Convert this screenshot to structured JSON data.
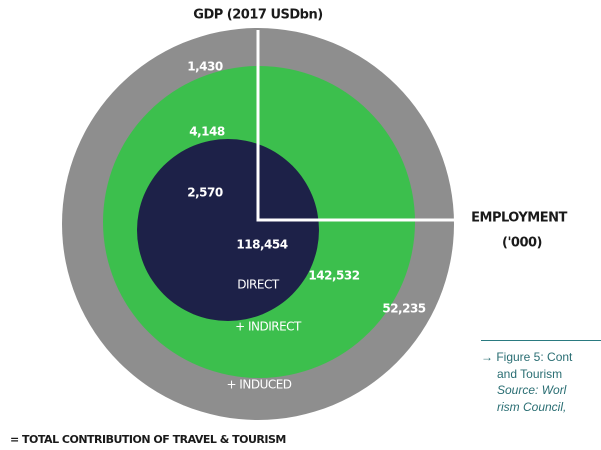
{
  "title": "GDP (2017 USDbn)",
  "axis_right": {
    "title": "EMPLOYMENT",
    "unit": "('000)"
  },
  "induced": {
    "gdp": "1,430",
    "employment": "52,235",
    "label": "+ INDUCED"
  },
  "indirect": {
    "gdp": "4,148",
    "employment": "142,532",
    "label": "+ INDIRECT"
  },
  "direct": {
    "gdp": "2,570",
    "employment": "118,454",
    "label": "DIRECT"
  },
  "legend": "= TOTAL CONTRIBUTION OF TRAVEL & TOURISM",
  "caption": [
    "→ Figure 5: Cont",
    "and Tourism",
    "Source: Worl",
    "rism Council,"
  ]
}
